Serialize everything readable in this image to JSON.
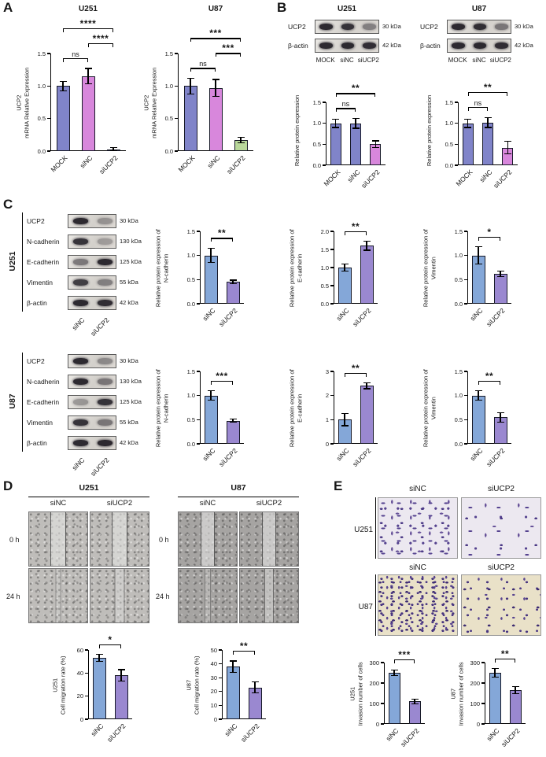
{
  "panelA": {
    "label": "A",
    "charts": [
      {
        "title": "U251",
        "ylabel": [
          "UCP2",
          "mRNA Relative Expression"
        ],
        "categories": [
          "MOCK",
          "siNC",
          "siUCP2"
        ],
        "values": [
          1.0,
          1.15,
          0.03
        ],
        "errors": [
          0.07,
          0.12,
          0.02
        ],
        "colors": [
          "#8084c9",
          "#d887dc",
          "#b9d89b"
        ],
        "ylim": [
          0,
          1.5
        ],
        "yticks": [
          "0.0",
          "0.5",
          "1.0",
          "1.5"
        ],
        "brackets": [
          {
            "a": 0,
            "b": 1,
            "label": "ns",
            "level": 1
          },
          {
            "a": 1,
            "b": 2,
            "label": "****",
            "level": 2
          },
          {
            "a": 0,
            "b": 2,
            "label": "****",
            "level": 3
          }
        ]
      },
      {
        "title": "U87",
        "ylabel": [
          "UCP2",
          "mRNA Relative Expression"
        ],
        "categories": [
          "MOCK",
          "siNC",
          "siUCP2"
        ],
        "values": [
          1.0,
          0.97,
          0.17
        ],
        "errors": [
          0.12,
          0.13,
          0.04
        ],
        "colors": [
          "#8084c9",
          "#d887dc",
          "#b9d89b"
        ],
        "ylim": [
          0,
          1.5
        ],
        "yticks": [
          "0.0",
          "0.5",
          "1.0",
          "1.5"
        ],
        "brackets": [
          {
            "a": 0,
            "b": 1,
            "label": "ns",
            "level": 1
          },
          {
            "a": 1,
            "b": 2,
            "label": "***",
            "level": 2
          },
          {
            "a": 0,
            "b": 2,
            "label": "***",
            "level": 3
          }
        ]
      }
    ]
  },
  "panelB": {
    "label": "B",
    "blocks": [
      {
        "title": "U251",
        "blot": {
          "rows": [
            {
              "label": "UCP2",
              "kda": "30 kDa",
              "bands": [
                0.9,
                0.85,
                0.45
              ]
            },
            {
              "label": "β-actin",
              "kda": "42 kDa",
              "bands": [
                0.9,
                0.9,
                0.88
              ]
            }
          ],
          "lanes": [
            "MOCK",
            "siNC",
            "siUCP2"
          ]
        },
        "chart": {
          "ylabel": [
            "Relative protein expression"
          ],
          "categories": [
            "MOCK",
            "siNC",
            "siUCP2"
          ],
          "values": [
            1.0,
            1.0,
            0.5
          ],
          "errors": [
            0.1,
            0.12,
            0.08
          ],
          "colors": [
            "#8084c9",
            "#8084c9",
            "#d887dc"
          ],
          "ylim": [
            0,
            1.5
          ],
          "yticks": [
            "0.0",
            "0.5",
            "1.0",
            "1.5"
          ],
          "brackets": [
            {
              "a": 0,
              "b": 1,
              "label": "ns",
              "level": 1
            },
            {
              "a": 0,
              "b": 2,
              "label": "**",
              "level": 2
            }
          ]
        }
      },
      {
        "title": "U87",
        "blot": {
          "rows": [
            {
              "label": "UCP2",
              "kda": "30 kDa",
              "bands": [
                0.9,
                0.88,
                0.5
              ]
            },
            {
              "label": "β-actin",
              "kda": "42 kDa",
              "bands": [
                0.9,
                0.9,
                0.88
              ]
            }
          ],
          "lanes": [
            "MOCK",
            "siNC",
            "siUCP2"
          ]
        },
        "chart": {
          "ylabel": [
            "Relative protein expression"
          ],
          "categories": [
            "MOCK",
            "siNC",
            "siUCP2"
          ],
          "values": [
            1.0,
            1.02,
            0.42
          ],
          "errors": [
            0.1,
            0.12,
            0.15
          ],
          "colors": [
            "#8084c9",
            "#8084c9",
            "#d887dc"
          ],
          "ylim": [
            0,
            1.5
          ],
          "yticks": [
            "0.0",
            "0.5",
            "1.0",
            "1.5"
          ],
          "brackets": [
            {
              "a": 0,
              "b": 1,
              "label": "ns",
              "level": 1
            },
            {
              "a": 0,
              "b": 2,
              "label": "**",
              "level": 2
            }
          ]
        }
      }
    ]
  },
  "panelC": {
    "label": "C",
    "blocks": [
      {
        "cell_line": "U251",
        "blot": {
          "rows": [
            {
              "label": "UCP2",
              "kda": "30 kDa",
              "bands": [
                0.9,
                0.35
              ]
            },
            {
              "label": "N-cadherin",
              "kda": "130 kDa",
              "bands": [
                0.85,
                0.3
              ]
            },
            {
              "label": "E-cadherin",
              "kda": "125 kDa",
              "bands": [
                0.5,
                0.9
              ]
            },
            {
              "label": "Vimentin",
              "kda": "55 kDa",
              "bands": [
                0.8,
                0.45
              ]
            },
            {
              "label": "β-actin",
              "kda": "42 kDa",
              "bands": [
                0.9,
                0.88
              ]
            }
          ],
          "lanes": [
            "siNC",
            "siUCP2"
          ]
        },
        "charts": [
          {
            "ylabel": [
              "Relative protein expression of",
              "N-cadherin"
            ],
            "categories": [
              "siNC",
              "siUCP2"
            ],
            "values": [
              1.0,
              0.45
            ],
            "errors": [
              0.15,
              0.04
            ],
            "colors": [
              "#84a7d8",
              "#9a88d0"
            ],
            "ylim": [
              0,
              1.5
            ],
            "yticks": [
              "0.0",
              "0.5",
              "1.0",
              "1.5"
            ],
            "brackets": [
              {
                "a": 0,
                "b": 1,
                "label": "**",
                "level": 1
              }
            ]
          },
          {
            "ylabel": [
              "Relative protein expression of",
              "E-cadherin"
            ],
            "categories": [
              "siNC",
              "siUCP2"
            ],
            "values": [
              1.0,
              1.6
            ],
            "errors": [
              0.1,
              0.12
            ],
            "colors": [
              "#84a7d8",
              "#9a88d0"
            ],
            "ylim": [
              0,
              2.0
            ],
            "yticks": [
              "0.0",
              "0.5",
              "1.0",
              "1.5",
              "2.0"
            ],
            "brackets": [
              {
                "a": 0,
                "b": 1,
                "label": "**",
                "level": 1
              }
            ]
          },
          {
            "ylabel": [
              "Relative protein expression of",
              "Vimentin"
            ],
            "categories": [
              "siNC",
              "siUCP2"
            ],
            "values": [
              1.0,
              0.62
            ],
            "errors": [
              0.18,
              0.06
            ],
            "colors": [
              "#84a7d8",
              "#9a88d0"
            ],
            "ylim": [
              0,
              1.5
            ],
            "yticks": [
              "0.0",
              "0.5",
              "1.0",
              "1.5"
            ],
            "brackets": [
              {
                "a": 0,
                "b": 1,
                "label": "*",
                "level": 1
              }
            ]
          }
        ]
      },
      {
        "cell_line": "U87",
        "blot": {
          "rows": [
            {
              "label": "UCP2",
              "kda": "30 kDa",
              "bands": [
                0.9,
                0.4
              ]
            },
            {
              "label": "N-cadherin",
              "kda": "130 kDa",
              "bands": [
                0.9,
                0.5
              ]
            },
            {
              "label": "E-cadherin",
              "kda": "125 kDa",
              "bands": [
                0.35,
                0.85
              ]
            },
            {
              "label": "Vimentin",
              "kda": "55 kDa",
              "bands": [
                0.85,
                0.5
              ]
            },
            {
              "label": "β-actin",
              "kda": "42 kDa",
              "bands": [
                0.9,
                0.9
              ]
            }
          ],
          "lanes": [
            "siNC",
            "siUCP2"
          ]
        },
        "charts": [
          {
            "ylabel": [
              "Relative protein expression of",
              "N-cadherin"
            ],
            "categories": [
              "siNC",
              "siUCP2"
            ],
            "values": [
              1.0,
              0.48
            ],
            "errors": [
              0.1,
              0.03
            ],
            "colors": [
              "#84a7d8",
              "#9a88d0"
            ],
            "ylim": [
              0,
              1.5
            ],
            "yticks": [
              "0.0",
              "0.5",
              "1.0",
              "1.5"
            ],
            "brackets": [
              {
                "a": 0,
                "b": 1,
                "label": "***",
                "level": 1
              }
            ]
          },
          {
            "ylabel": [
              "Relative protein expression of",
              "E-cadherin"
            ],
            "categories": [
              "siNC",
              "siUCP2"
            ],
            "values": [
              1.0,
              2.4
            ],
            "errors": [
              0.25,
              0.12
            ],
            "colors": [
              "#84a7d8",
              "#9a88d0"
            ],
            "ylim": [
              0,
              3
            ],
            "yticks": [
              "0",
              "1",
              "2",
              "3"
            ],
            "brackets": [
              {
                "a": 0,
                "b": 1,
                "label": "**",
                "level": 1
              }
            ]
          },
          {
            "ylabel": [
              "Relative protein expression of",
              "Vimentin"
            ],
            "categories": [
              "siNC",
              "siUCP2"
            ],
            "values": [
              1.0,
              0.55
            ],
            "errors": [
              0.1,
              0.1
            ],
            "colors": [
              "#84a7d8",
              "#9a88d0"
            ],
            "ylim": [
              0,
              1.5
            ],
            "yticks": [
              "0.0",
              "0.5",
              "1.0",
              "1.5"
            ],
            "brackets": [
              {
                "a": 0,
                "b": 1,
                "label": "**",
                "level": 1
              }
            ]
          }
        ]
      }
    ]
  },
  "panelD": {
    "label": "D",
    "groups": [
      {
        "title": "U251",
        "columns": [
          "siNC",
          "siUCP2"
        ],
        "rows": [
          "0 h",
          "24 h"
        ]
      },
      {
        "title": "U87",
        "columns": [
          "siNC",
          "siUCP2"
        ],
        "rows": [
          "0 h",
          "24 h"
        ]
      }
    ],
    "charts": [
      {
        "ylabel": [
          "U251",
          "Cell migration rate (%)"
        ],
        "categories": [
          "siNC",
          "siUCP2"
        ],
        "values": [
          53,
          38
        ],
        "errors": [
          3,
          5
        ],
        "colors": [
          "#84a7d8",
          "#9a88d0"
        ],
        "ylim": [
          0,
          60
        ],
        "yticks": [
          "0",
          "20",
          "40",
          "60"
        ],
        "brackets": [
          {
            "a": 0,
            "b": 1,
            "label": "*",
            "level": 1
          }
        ]
      },
      {
        "ylabel": [
          "U87",
          "Cell migration rate (%)"
        ],
        "categories": [
          "siNC",
          "siUCP2"
        ],
        "values": [
          38,
          23
        ],
        "errors": [
          4,
          4
        ],
        "colors": [
          "#84a7d8",
          "#9a88d0"
        ],
        "ylim": [
          0,
          50
        ],
        "yticks": [
          "0",
          "10",
          "20",
          "30",
          "40",
          "50"
        ],
        "brackets": [
          {
            "a": 0,
            "b": 1,
            "label": "**",
            "level": 1
          }
        ]
      }
    ]
  },
  "panelE": {
    "label": "E",
    "columns": [
      "siNC",
      "siUCP2"
    ],
    "rows": [
      "U251",
      "U87"
    ],
    "charts": [
      {
        "ylabel": [
          "U251",
          "Invasion number of cells"
        ],
        "categories": [
          "siNC",
          "siUCP2"
        ],
        "values": [
          250,
          110
        ],
        "errors": [
          15,
          12
        ],
        "colors": [
          "#84a7d8",
          "#9a88d0"
        ],
        "ylim": [
          0,
          300
        ],
        "yticks": [
          "0",
          "100",
          "200",
          "300"
        ],
        "brackets": [
          {
            "a": 0,
            "b": 1,
            "label": "***",
            "level": 1
          }
        ]
      },
      {
        "ylabel": [
          "U87",
          "Invasion number of cells"
        ],
        "categories": [
          "siNC",
          "siUCP2"
        ],
        "values": [
          250,
          165
        ],
        "errors": [
          20,
          18
        ],
        "colors": [
          "#84a7d8",
          "#9a88d0"
        ],
        "ylim": [
          0,
          300
        ],
        "yticks": [
          "0",
          "100",
          "200",
          "300"
        ],
        "brackets": [
          {
            "a": 0,
            "b": 1,
            "label": "**",
            "level": 1
          }
        ]
      }
    ]
  }
}
